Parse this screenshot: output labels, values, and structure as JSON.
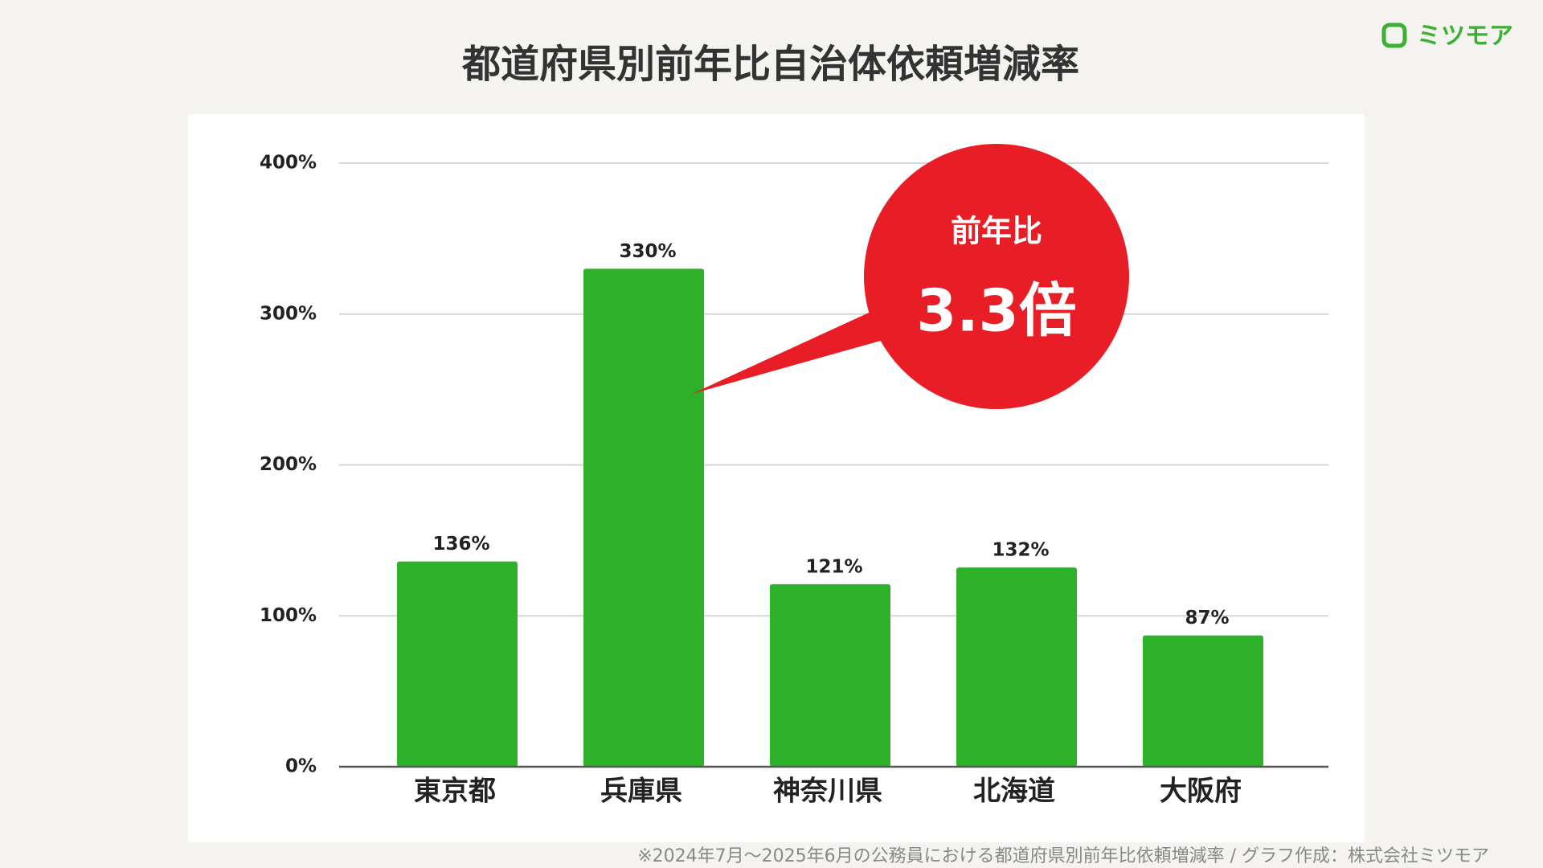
{
  "brand": "ミツモア",
  "chart_data": {
    "type": "bar",
    "title": "都道府県別前年比自治体依頼増減率",
    "categories": [
      "東京都",
      "兵庫県",
      "神奈川県",
      "北海道",
      "大阪府"
    ],
    "values": [
      136,
      330,
      121,
      132,
      87
    ],
    "value_labels": [
      "136%",
      "330%",
      "121%",
      "132%",
      "87%"
    ],
    "color": "#2db02a",
    "ylim": [
      0,
      400
    ],
    "yticks": [
      {
        "value": 0,
        "label": "0%"
      },
      {
        "value": 100,
        "label": "100%"
      },
      {
        "value": 200,
        "label": "200%"
      },
      {
        "value": 300,
        "label": "300%"
      },
      {
        "value": 400,
        "label": "400%"
      }
    ],
    "grid": true,
    "annotation": {
      "label": "前年比",
      "text": "3.3倍",
      "category_index": 1,
      "color": "#e91d25"
    },
    "source": "※2024年7月～2025年6月の公務員における都道府県別前年比依頼増減率 / グラフ作成：株式会社ミツモア"
  }
}
